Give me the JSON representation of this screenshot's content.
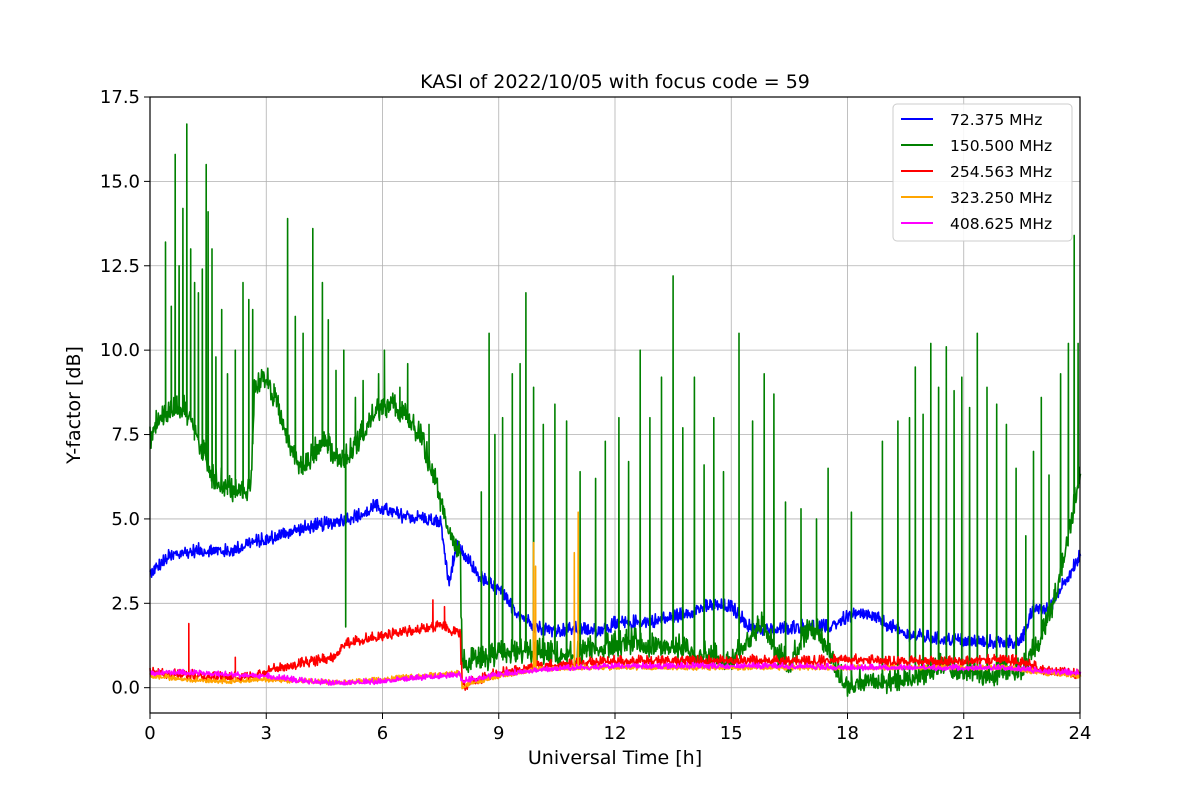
{
  "chart_data": {
    "type": "line",
    "title": "KASI of 2022/10/05 with focus code = 59",
    "xlabel": "Universal Time [h]",
    "ylabel": "Y-factor [dB]",
    "xlim": [
      0,
      24
    ],
    "ylim": [
      -0.75,
      17.5
    ],
    "xticks": [
      0,
      3,
      6,
      9,
      12,
      15,
      18,
      21,
      24
    ],
    "xtick_labels": [
      "0",
      "3",
      "6",
      "9",
      "12",
      "15",
      "18",
      "21",
      "24"
    ],
    "yticks": [
      0,
      2.5,
      5,
      7.5,
      10,
      12.5,
      15,
      17.5
    ],
    "ytick_labels": [
      "0.0",
      "2.5",
      "5.0",
      "7.5",
      "10.0",
      "12.5",
      "15.0",
      "17.5"
    ],
    "grid": true,
    "legend_position": "top-right",
    "series": [
      {
        "name": " 72.375 MHz",
        "color": "#0000ff",
        "base": [
          [
            0,
            3.4
          ],
          [
            0.5,
            3.9
          ],
          [
            1,
            4.05
          ],
          [
            1.5,
            4.1
          ],
          [
            2,
            4.05
          ],
          [
            2.2,
            4.1
          ],
          [
            2.5,
            4.3
          ],
          [
            3,
            4.4
          ],
          [
            3.5,
            4.6
          ],
          [
            4,
            4.75
          ],
          [
            4.5,
            4.85
          ],
          [
            5,
            5.0
          ],
          [
            5.5,
            5.15
          ],
          [
            5.8,
            5.4
          ],
          [
            6,
            5.3
          ],
          [
            6.5,
            5.1
          ],
          [
            7,
            5.05
          ],
          [
            7.5,
            4.9
          ],
          [
            7.7,
            3.1
          ],
          [
            7.9,
            4.2
          ],
          [
            8.2,
            3.8
          ],
          [
            8.5,
            3.3
          ],
          [
            9,
            2.9
          ],
          [
            9.5,
            2.2
          ],
          [
            10,
            1.8
          ],
          [
            10.5,
            1.7
          ],
          [
            11,
            1.75
          ],
          [
            11.5,
            1.7
          ],
          [
            12,
            1.9
          ],
          [
            12.5,
            1.95
          ],
          [
            13,
            2.0
          ],
          [
            13.5,
            2.1
          ],
          [
            14,
            2.3
          ],
          [
            14.5,
            2.45
          ],
          [
            15,
            2.4
          ],
          [
            15.5,
            1.8
          ],
          [
            16,
            1.7
          ],
          [
            16.5,
            1.8
          ],
          [
            17,
            1.85
          ],
          [
            17.5,
            1.8
          ],
          [
            18,
            2.1
          ],
          [
            18.5,
            2.2
          ],
          [
            19,
            1.9
          ],
          [
            19.5,
            1.6
          ],
          [
            20,
            1.5
          ],
          [
            21,
            1.4
          ],
          [
            22,
            1.35
          ],
          [
            22.5,
            1.4
          ],
          [
            22.8,
            2.4
          ],
          [
            23.2,
            2.3
          ],
          [
            23.5,
            3.0
          ],
          [
            24,
            3.9
          ]
        ],
        "noise": 0.22,
        "spikes": []
      },
      {
        "name": "150.500 MHz",
        "color": "#008000",
        "base": [
          [
            0,
            7.4
          ],
          [
            0.2,
            8.0
          ],
          [
            0.5,
            8.2
          ],
          [
            0.8,
            8.4
          ],
          [
            1,
            8.1
          ],
          [
            1.3,
            7.2
          ],
          [
            1.6,
            6.3
          ],
          [
            2,
            6.0
          ],
          [
            2.3,
            5.8
          ],
          [
            2.6,
            6.0
          ],
          [
            2.7,
            9.0
          ],
          [
            3,
            9.2
          ],
          [
            3.3,
            8.3
          ],
          [
            3.6,
            7.3
          ],
          [
            3.9,
            6.6
          ],
          [
            4.2,
            6.9
          ],
          [
            4.5,
            7.5
          ],
          [
            4.8,
            6.8
          ],
          [
            5.1,
            6.9
          ],
          [
            5.5,
            7.6
          ],
          [
            5.8,
            8.2
          ],
          [
            6.2,
            8.4
          ],
          [
            6.6,
            8.1
          ],
          [
            7,
            7.4
          ],
          [
            7.3,
            6.4
          ],
          [
            7.6,
            5.1
          ],
          [
            8,
            4.0
          ],
          [
            8.05,
            0.8
          ],
          [
            8.5,
            0.8
          ],
          [
            9,
            1.0
          ],
          [
            9.5,
            1.1
          ],
          [
            10,
            1.1
          ],
          [
            10.5,
            1.0
          ],
          [
            11,
            1.0
          ],
          [
            11.5,
            1.2
          ],
          [
            12,
            1.3
          ],
          [
            12.5,
            1.4
          ],
          [
            13,
            1.2
          ],
          [
            13.5,
            1.3
          ],
          [
            14,
            1.0
          ],
          [
            14.5,
            1.0
          ],
          [
            15,
            0.8
          ],
          [
            15.5,
            1.5
          ],
          [
            15.8,
            1.9
          ],
          [
            16.2,
            1.0
          ],
          [
            16.5,
            0.8
          ],
          [
            17,
            1.8
          ],
          [
            17.3,
            1.6
          ],
          [
            17.7,
            0.6
          ],
          [
            18,
            0.1
          ],
          [
            18.5,
            0.3
          ],
          [
            19,
            0.2
          ],
          [
            19.5,
            0.3
          ],
          [
            20,
            0.5
          ],
          [
            20.5,
            0.7
          ],
          [
            21,
            0.5
          ],
          [
            21.5,
            0.4
          ],
          [
            22,
            0.5
          ],
          [
            22.5,
            0.6
          ],
          [
            23,
            1.5
          ],
          [
            23.3,
            2.5
          ],
          [
            23.6,
            4.0
          ],
          [
            24,
            6.3
          ]
        ],
        "noise": 0.4,
        "spikes": [
          [
            0.4,
            13.2
          ],
          [
            0.55,
            11.3
          ],
          [
            0.65,
            15.8
          ],
          [
            0.75,
            12.5
          ],
          [
            0.85,
            14.2
          ],
          [
            0.95,
            16.7
          ],
          [
            1.05,
            13.0
          ],
          [
            1.15,
            12.0
          ],
          [
            1.25,
            11.7
          ],
          [
            1.35,
            12.4
          ],
          [
            1.45,
            15.5
          ],
          [
            1.5,
            14.1
          ],
          [
            1.6,
            13.0
          ],
          [
            1.7,
            9.8
          ],
          [
            1.85,
            11.2
          ],
          [
            2.0,
            9.3
          ],
          [
            2.2,
            10.0
          ],
          [
            2.4,
            12.0
          ],
          [
            2.55,
            11.5
          ],
          [
            2.65,
            11.2
          ],
          [
            3.2,
            9.0
          ],
          [
            3.55,
            13.9
          ],
          [
            3.75,
            11.0
          ],
          [
            3.95,
            10.5
          ],
          [
            4.2,
            13.6
          ],
          [
            4.45,
            12.0
          ],
          [
            4.6,
            10.9
          ],
          [
            4.8,
            9.4
          ],
          [
            5.0,
            10.0
          ],
          [
            5.05,
            1.8
          ],
          [
            5.3,
            8.6
          ],
          [
            5.5,
            9.1
          ],
          [
            5.9,
            9.3
          ],
          [
            6.05,
            10.0
          ],
          [
            6.45,
            8.9
          ],
          [
            6.65,
            9.6
          ],
          [
            7.2,
            7.8
          ],
          [
            7.5,
            5.6
          ],
          [
            8.55,
            5.8
          ],
          [
            8.75,
            10.5
          ],
          [
            8.9,
            7.5
          ],
          [
            9.1,
            8.0
          ],
          [
            9.35,
            9.3
          ],
          [
            9.55,
            9.6
          ],
          [
            9.7,
            11.7
          ],
          [
            9.9,
            8.9
          ],
          [
            10.15,
            7.8
          ],
          [
            10.45,
            8.4
          ],
          [
            10.75,
            7.9
          ],
          [
            11.1,
            6.4
          ],
          [
            11.5,
            6.2
          ],
          [
            11.75,
            7.3
          ],
          [
            12.1,
            8.0
          ],
          [
            12.35,
            6.7
          ],
          [
            12.65,
            10.0
          ],
          [
            12.9,
            8.0
          ],
          [
            13.2,
            9.2
          ],
          [
            13.5,
            12.2
          ],
          [
            13.75,
            7.7
          ],
          [
            14.05,
            9.2
          ],
          [
            14.3,
            6.6
          ],
          [
            14.55,
            8.0
          ],
          [
            14.8,
            6.4
          ],
          [
            15.2,
            10.5
          ],
          [
            15.55,
            7.9
          ],
          [
            15.85,
            9.3
          ],
          [
            16.1,
            8.7
          ],
          [
            16.4,
            5.5
          ],
          [
            16.8,
            5.3
          ],
          [
            17.2,
            5.0
          ],
          [
            17.5,
            6.5
          ],
          [
            18.1,
            5.2
          ],
          [
            18.9,
            7.3
          ],
          [
            19.3,
            7.9
          ],
          [
            19.6,
            8.0
          ],
          [
            19.75,
            9.5
          ],
          [
            19.95,
            8.1
          ],
          [
            20.15,
            10.2
          ],
          [
            20.35,
            8.9
          ],
          [
            20.55,
            10.1
          ],
          [
            20.75,
            8.8
          ],
          [
            20.95,
            9.2
          ],
          [
            21.15,
            8.3
          ],
          [
            21.35,
            10.5
          ],
          [
            21.6,
            8.9
          ],
          [
            21.85,
            8.4
          ],
          [
            22.1,
            7.8
          ],
          [
            22.35,
            6.5
          ],
          [
            22.6,
            4.5
          ],
          [
            22.8,
            7.0
          ],
          [
            23.0,
            8.6
          ],
          [
            23.2,
            6.3
          ],
          [
            23.5,
            9.3
          ],
          [
            23.7,
            10.2
          ],
          [
            23.85,
            13.4
          ],
          [
            23.95,
            10.2
          ]
        ]
      },
      {
        "name": "254.563 MHz",
        "color": "#ff0000",
        "base": [
          [
            0,
            0.45
          ],
          [
            1,
            0.4
          ],
          [
            2,
            0.3
          ],
          [
            2.5,
            0.35
          ],
          [
            3,
            0.5
          ],
          [
            3.5,
            0.65
          ],
          [
            4,
            0.75
          ],
          [
            4.5,
            0.85
          ],
          [
            4.8,
            0.95
          ],
          [
            5,
            1.3
          ],
          [
            5.5,
            1.45
          ],
          [
            6,
            1.55
          ],
          [
            6.5,
            1.65
          ],
          [
            7,
            1.75
          ],
          [
            7.5,
            1.85
          ],
          [
            8,
            1.6
          ],
          [
            8.05,
            0.05
          ],
          [
            8.5,
            0.25
          ],
          [
            9,
            0.45
          ],
          [
            9.5,
            0.55
          ],
          [
            10,
            0.65
          ],
          [
            11,
            0.75
          ],
          [
            12,
            0.8
          ],
          [
            13,
            0.8
          ],
          [
            14,
            0.8
          ],
          [
            15,
            0.85
          ],
          [
            16,
            0.8
          ],
          [
            17,
            0.8
          ],
          [
            18,
            0.85
          ],
          [
            19,
            0.8
          ],
          [
            20,
            0.8
          ],
          [
            21,
            0.8
          ],
          [
            22,
            0.85
          ],
          [
            22.5,
            0.8
          ],
          [
            23,
            0.55
          ],
          [
            23.5,
            0.45
          ],
          [
            24,
            0.4
          ]
        ],
        "noise": 0.16,
        "spikes": [
          [
            1.0,
            1.9
          ],
          [
            2.2,
            0.9
          ],
          [
            7.3,
            2.6
          ],
          [
            7.6,
            2.4
          ]
        ]
      },
      {
        "name": "323.250 MHz",
        "color": "#ffa500",
        "base": [
          [
            0,
            0.35
          ],
          [
            1,
            0.25
          ],
          [
            2,
            0.2
          ],
          [
            3,
            0.25
          ],
          [
            4,
            0.2
          ],
          [
            5,
            0.15
          ],
          [
            6,
            0.25
          ],
          [
            7,
            0.35
          ],
          [
            8,
            0.45
          ],
          [
            8.05,
            0.05
          ],
          [
            9,
            0.35
          ],
          [
            10,
            0.55
          ],
          [
            11,
            0.6
          ],
          [
            12,
            0.6
          ],
          [
            13,
            0.6
          ],
          [
            14,
            0.6
          ],
          [
            15,
            0.6
          ],
          [
            16,
            0.6
          ],
          [
            17,
            0.6
          ],
          [
            18,
            0.6
          ],
          [
            19,
            0.6
          ],
          [
            20,
            0.6
          ],
          [
            21,
            0.6
          ],
          [
            22,
            0.6
          ],
          [
            23,
            0.45
          ],
          [
            24,
            0.35
          ]
        ],
        "noise": 0.08,
        "spikes": [
          [
            9.9,
            4.3
          ],
          [
            9.95,
            3.6
          ],
          [
            10.95,
            4.0
          ],
          [
            11.05,
            5.2
          ]
        ]
      },
      {
        "name": "408.625 MHz",
        "color": "#ff00ff",
        "base": [
          [
            0,
            0.45
          ],
          [
            1,
            0.45
          ],
          [
            2,
            0.4
          ],
          [
            3,
            0.35
          ],
          [
            4,
            0.2
          ],
          [
            5,
            0.15
          ],
          [
            6,
            0.2
          ],
          [
            7,
            0.3
          ],
          [
            8,
            0.4
          ],
          [
            8.05,
            0.2
          ],
          [
            9,
            0.4
          ],
          [
            10,
            0.55
          ],
          [
            11,
            0.6
          ],
          [
            12,
            0.65
          ],
          [
            13,
            0.65
          ],
          [
            14,
            0.65
          ],
          [
            15,
            0.65
          ],
          [
            16,
            0.65
          ],
          [
            17,
            0.65
          ],
          [
            18,
            0.6
          ],
          [
            19,
            0.6
          ],
          [
            20,
            0.6
          ],
          [
            21,
            0.6
          ],
          [
            22,
            0.6
          ],
          [
            23,
            0.5
          ],
          [
            24,
            0.45
          ]
        ],
        "noise": 0.09,
        "spikes": []
      }
    ]
  }
}
